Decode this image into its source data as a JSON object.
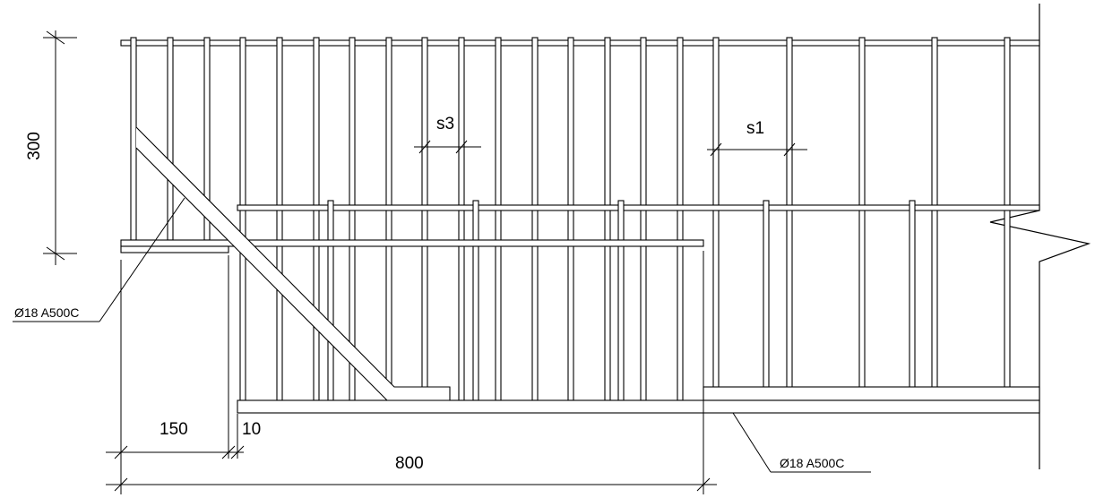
{
  "labels": {
    "dim_height": "300",
    "dim_overhang": "150",
    "dim_gap": "10",
    "dim_length": "800",
    "spacing_s3": "s3",
    "spacing_s1": "s1",
    "rebar_upper": "Ø18 A500C",
    "rebar_lower": "Ø18 A500C"
  }
}
